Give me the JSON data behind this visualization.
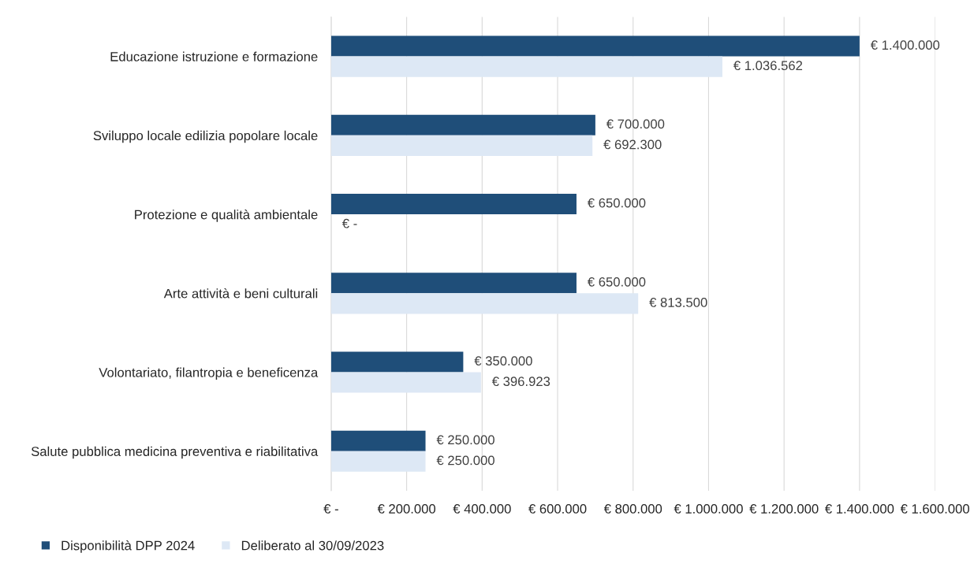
{
  "chart_data": {
    "type": "bar",
    "orientation": "horizontal",
    "categories": [
      "Educazione istruzione e formazione",
      "Sviluppo locale edilizia popolare locale",
      "Protezione e qualità ambientale",
      "Arte attività e beni culturali",
      "Volontariato, filantropia e beneficenza",
      "Salute pubblica medicina preventiva e riabilitativa"
    ],
    "series": [
      {
        "name": "Disponibilità DPP 2024",
        "color": "#1f4e79",
        "values": [
          1400000,
          700000,
          650000,
          650000,
          350000,
          250000
        ],
        "value_labels": [
          "€ 1.400.000",
          "€ 700.000",
          "€ 650.000",
          "€ 650.000",
          "€ 350.000",
          "€ 250.000"
        ]
      },
      {
        "name": "Deliberato al 30/09/2023",
        "color": "#dde8f5",
        "values": [
          1036562,
          692300,
          0,
          813500,
          396923,
          250000
        ],
        "value_labels": [
          "€ 1.036.562",
          "€ 692.300",
          "€ -",
          "€ 813.500",
          "€ 396.923",
          "€ 250.000"
        ]
      }
    ],
    "xlim": [
      0,
      1600000
    ],
    "xticks": [
      {
        "value": 0,
        "label": "€ -"
      },
      {
        "value": 200000,
        "label": "€ 200.000"
      },
      {
        "value": 400000,
        "label": "€ 400.000"
      },
      {
        "value": 600000,
        "label": "€ 600.000"
      },
      {
        "value": 800000,
        "label": "€ 800.000"
      },
      {
        "value": 1000000,
        "label": "€ 1.000.000"
      },
      {
        "value": 1200000,
        "label": "€ 1.200.000"
      },
      {
        "value": 1400000,
        "label": "€ 1.400.000"
      },
      {
        "value": 1600000,
        "label": "€ 1.600.000"
      }
    ],
    "grid": "x",
    "legend": "bottom left"
  }
}
